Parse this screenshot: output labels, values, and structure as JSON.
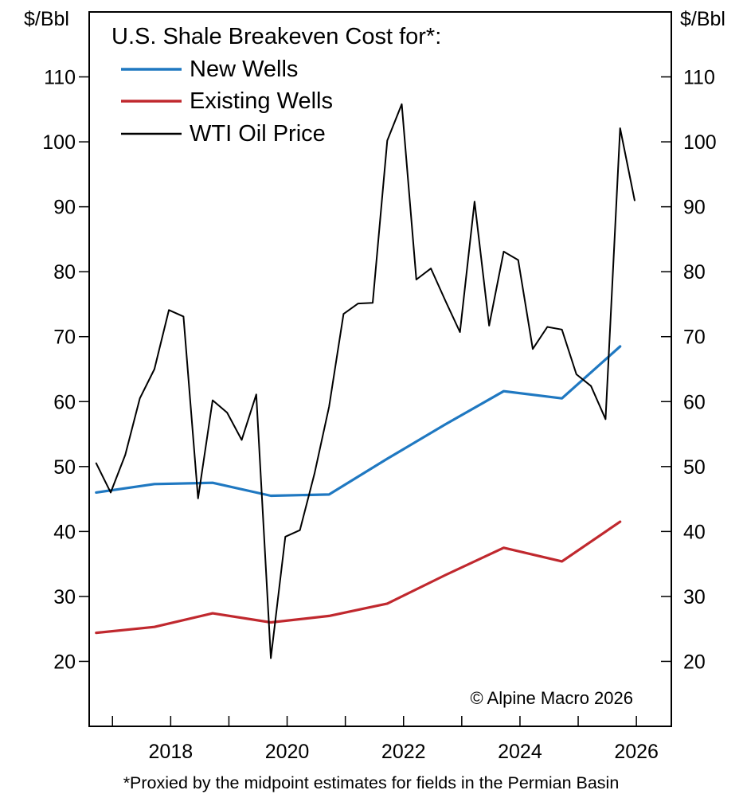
{
  "chart_data": {
    "type": "line",
    "title": "U.S. Shale Breakeven Cost for*:",
    "ylabel_left": "$/Bbl",
    "ylabel_right": "$/Bbl",
    "xlim": [
      2016.6,
      2026.6
    ],
    "ylim": [
      10,
      120
    ],
    "yticks": [
      20,
      30,
      40,
      50,
      60,
      70,
      80,
      90,
      100,
      110
    ],
    "xticks_labeled": [
      2018,
      2020,
      2022,
      2024,
      2026
    ],
    "xticks_minor": [
      2017,
      2019,
      2021,
      2023,
      2025
    ],
    "grid": false,
    "legend_position": "top-left",
    "series": [
      {
        "name": "New Wells",
        "color": "#1f78c1",
        "x": [
          2016.72,
          2017.72,
          2018.72,
          2019.72,
          2020.72,
          2021.72,
          2022.72,
          2023.72,
          2024.72,
          2025.72
        ],
        "y": [
          46.0,
          47.3,
          47.5,
          45.5,
          45.7,
          51.2,
          56.5,
          61.6,
          60.5,
          68.5
        ]
      },
      {
        "name": "Existing Wells",
        "color": "#c0282e",
        "x": [
          2016.72,
          2017.72,
          2018.72,
          2019.72,
          2020.72,
          2021.72,
          2022.72,
          2023.72,
          2024.72,
          2025.72
        ],
        "y": [
          24.4,
          25.3,
          27.4,
          26.0,
          27.0,
          28.9,
          33.3,
          37.5,
          35.4,
          41.5
        ]
      },
      {
        "name": "WTI Oil Price",
        "color": "#000000",
        "x": [
          2016.72,
          2016.97,
          2017.22,
          2017.47,
          2017.72,
          2017.97,
          2018.22,
          2018.47,
          2018.72,
          2018.97,
          2019.22,
          2019.47,
          2019.72,
          2019.97,
          2020.22,
          2020.47,
          2020.72,
          2020.97,
          2021.22,
          2021.47,
          2021.72,
          2021.97,
          2022.22,
          2022.47,
          2022.72,
          2022.97,
          2023.22,
          2023.47,
          2023.72,
          2023.97,
          2024.22,
          2024.47,
          2024.72,
          2024.97,
          2025.22,
          2025.47,
          2025.72,
          2025.97
        ],
        "y": [
          50.5,
          46.0,
          51.8,
          60.5,
          65.0,
          74.1,
          73.1,
          45.1,
          60.2,
          58.3,
          54.1,
          61.1,
          20.5,
          39.2,
          40.2,
          48.9,
          59.2,
          73.5,
          75.1,
          75.2,
          100.2,
          105.8,
          78.8,
          80.5,
          75.5,
          70.7,
          90.8,
          71.7,
          83.1,
          81.8,
          68.1,
          71.5,
          71.1,
          64.2,
          62.4,
          57.3,
          102.1,
          91.0
        ]
      }
    ],
    "annotations": [
      "© Alpine Macro 2026"
    ],
    "footnote": "*Proxied by the midpoint estimates for fields in the Permian Basin"
  }
}
